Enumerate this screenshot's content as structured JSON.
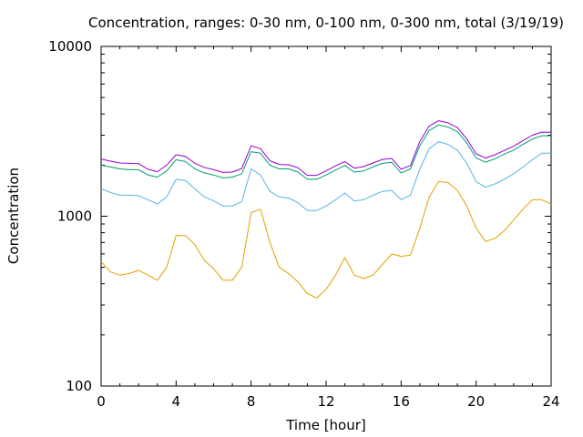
{
  "chart_data": {
    "type": "line",
    "title": "Concentration, ranges: 0-30 nm, 0-100 nm, 0-300 nm, total (3/19/19)",
    "xlabel": "Time [hour]",
    "ylabel": "Concentration",
    "xlim": [
      0,
      24
    ],
    "ylim": [
      100,
      10000
    ],
    "yscale": "log",
    "grid": false,
    "legend": "none",
    "x_ticks": [
      0,
      4,
      8,
      12,
      16,
      20,
      24
    ],
    "x_tick_labels": [
      "0",
      "4",
      "8",
      "12",
      "16",
      "20",
      "24"
    ],
    "y_ticks": [
      100,
      1000,
      10000
    ],
    "y_tick_labels": [
      "100",
      "1000",
      "10000"
    ],
    "x": [
      0,
      0.5,
      1,
      1.5,
      2,
      2.5,
      3,
      3.5,
      4,
      4.5,
      5,
      5.5,
      6,
      6.5,
      7,
      7.5,
      8,
      8.5,
      9,
      9.5,
      10,
      10.5,
      11,
      11.5,
      12,
      12.5,
      13,
      13.5,
      14,
      14.5,
      15,
      15.5,
      16,
      16.5,
      17,
      17.5,
      18,
      18.5,
      19,
      19.5,
      20,
      20.5,
      21,
      21.5,
      22,
      22.5,
      23,
      23.5,
      24
    ],
    "series": [
      {
        "color": "#e69f00",
        "values": [
          540,
          470,
          450,
          460,
          480,
          450,
          420,
          500,
          770,
          770,
          680,
          550,
          490,
          420,
          420,
          500,
          1050,
          1100,
          700,
          500,
          460,
          410,
          350,
          330,
          370,
          450,
          570,
          450,
          430,
          450,
          520,
          600,
          580,
          590,
          850,
          1300,
          1600,
          1580,
          1420,
          1150,
          850,
          710,
          740,
          820,
          950,
          1100,
          1250,
          1250,
          1180
        ]
      },
      {
        "color": "#56b4e9",
        "values": [
          1450,
          1380,
          1330,
          1330,
          1320,
          1250,
          1180,
          1300,
          1650,
          1620,
          1450,
          1300,
          1230,
          1150,
          1150,
          1220,
          1900,
          1750,
          1400,
          1300,
          1280,
          1200,
          1080,
          1080,
          1150,
          1250,
          1370,
          1230,
          1250,
          1330,
          1400,
          1420,
          1250,
          1330,
          1900,
          2500,
          2750,
          2650,
          2450,
          2050,
          1600,
          1480,
          1550,
          1650,
          1780,
          1950,
          2150,
          2350,
          2350
        ]
      },
      {
        "color": "#009e73",
        "values": [
          2000,
          1950,
          1900,
          1880,
          1880,
          1750,
          1700,
          1850,
          2150,
          2100,
          1900,
          1800,
          1750,
          1680,
          1700,
          1780,
          2400,
          2350,
          2000,
          1900,
          1900,
          1820,
          1650,
          1650,
          1750,
          1870,
          1990,
          1820,
          1850,
          1950,
          2050,
          2080,
          1800,
          1900,
          2600,
          3200,
          3450,
          3350,
          3150,
          2700,
          2200,
          2080,
          2180,
          2320,
          2450,
          2650,
          2850,
          2980,
          2980
        ]
      },
      {
        "color": "#9400d3",
        "values": [
          2170,
          2110,
          2060,
          2050,
          2040,
          1890,
          1830,
          2000,
          2300,
          2250,
          2050,
          1940,
          1880,
          1810,
          1820,
          1910,
          2600,
          2500,
          2120,
          2020,
          2010,
          1930,
          1740,
          1740,
          1850,
          1980,
          2100,
          1920,
          1960,
          2060,
          2160,
          2190,
          1890,
          1990,
          2760,
          3400,
          3650,
          3550,
          3330,
          2850,
          2330,
          2200,
          2300,
          2440,
          2580,
          2790,
          3000,
          3130,
          3120
        ]
      }
    ]
  }
}
